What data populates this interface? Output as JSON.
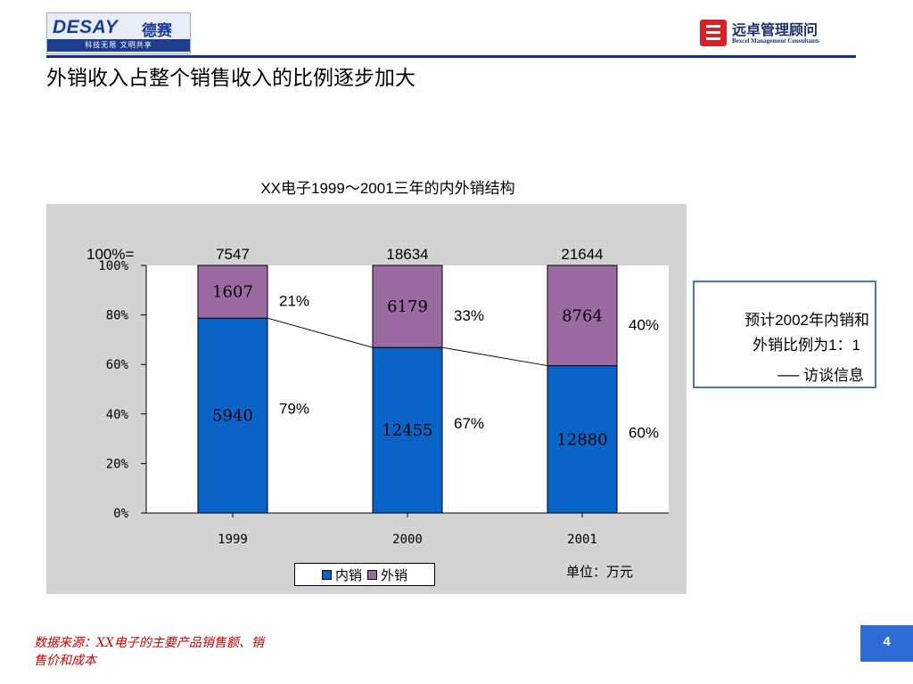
{
  "header": {
    "left_logo": {
      "brand": "DESAY",
      "brand_cn": "德赛",
      "slogan": "科技无限  文明共享"
    },
    "right_logo": {
      "name_cn": "远卓管理顾问",
      "name_en": "Bexcel Management Consultants",
      "icon": "bexcel-logo-icon"
    },
    "title": "外销收入占整个销售收入的比例逐步加大",
    "rule_color": "#1a2b8f"
  },
  "chart_data": {
    "type": "bar",
    "stacked": "percent",
    "title": "XX电子1999～2001三年的内外销结构",
    "categories": [
      "1999",
      "2000",
      "2001"
    ],
    "totals_label": "100%=",
    "totals": [
      "7547",
      "18634",
      "21644"
    ],
    "series": [
      {
        "name": "内销",
        "color": "#0a64c8",
        "values": [
          5940,
          12455,
          12880
        ],
        "labels": [
          "5940",
          "12455",
          "12880"
        ],
        "percent_labels": [
          "79%",
          "67%",
          "60%"
        ]
      },
      {
        "name": "外销",
        "color": "#9b6aa3",
        "values": [
          1607,
          6179,
          8764
        ],
        "labels": [
          "1607",
          "6179",
          "8764"
        ],
        "percent_labels": [
          "21%",
          "33%",
          "40%"
        ]
      }
    ],
    "y_ticks": [
      "0%",
      "20%",
      "40%",
      "60%",
      "80%",
      "100%"
    ],
    "ylim": [
      0,
      100
    ],
    "grid": false,
    "legend_position": "bottom",
    "unit": "单位：万元",
    "background_color": "#d3d3d3"
  },
  "callout": {
    "line1": "预计2002年内销和",
    "line2": "外销比例为1：1",
    "line3": "── 访谈信息",
    "border_color": "#4a76b9"
  },
  "footer": {
    "source": "数据来源：XX电子的主要产品销售额、销售价和成本",
    "page_number": "4"
  }
}
